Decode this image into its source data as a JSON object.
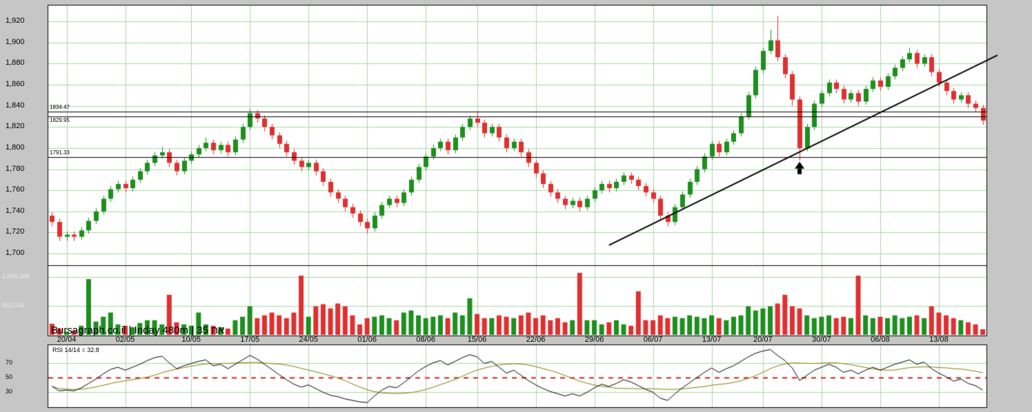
{
  "title": "Bursagraph.co.il | Inday 480m | 35 אח",
  "rsi_label": "RSI 14/14 = 32.8",
  "axes": {
    "price_ticks": [
      {
        "label": "1,920",
        "value": 1920
      },
      {
        "label": "1,900",
        "value": 1900
      },
      {
        "label": "1,880",
        "value": 1880
      },
      {
        "label": "1,860",
        "value": 1860
      },
      {
        "label": "1,840",
        "value": 1840
      },
      {
        "label": "1,820",
        "value": 1820
      },
      {
        "label": "1,800",
        "value": 1800
      },
      {
        "label": "1,780",
        "value": 1780
      },
      {
        "label": "1,760",
        "value": 1760
      },
      {
        "label": "1,740",
        "value": 1740
      },
      {
        "label": "1,720",
        "value": 1720
      },
      {
        "label": "1,700",
        "value": 1700
      }
    ],
    "volume_ticks": [
      {
        "label": "1,666,288",
        "value": 1666288
      },
      {
        "label": "833,144",
        "value": 833144
      }
    ],
    "rsi_ticks": [
      70,
      50,
      30
    ],
    "dates": [
      "20/04",
      "02/05",
      "10/05",
      "17/05",
      "24/05",
      "01/06",
      "08/06",
      "15/06",
      "22/06",
      "29/06",
      "06/07",
      "13/07",
      "20/07",
      "30/07",
      "06/08",
      "13/08"
    ]
  },
  "levels": [
    {
      "label": "1834.47",
      "value": 1834.47,
      "label_pos": "above"
    },
    {
      "label": "1829.95",
      "value": 1829.95,
      "label_pos": "below"
    },
    {
      "label": "1791.33",
      "value": 1791.33,
      "label_pos": "above"
    }
  ],
  "colors": {
    "background": "#c6c6c6",
    "plot_bg": "#ffffff",
    "grid": "#a6d7a6",
    "up": "#1d8f1d",
    "down": "#e03030",
    "rsi_line": "#000000",
    "rsi_ma": "#7f7f00",
    "level_line": "#000000",
    "trend_line": "#000000",
    "dashed_50": "#cc2222",
    "border": "#000000"
  },
  "chart_data": {
    "type": "candlestick",
    "title": "Bursagraph.co.il | Inday 480m | 35 אח",
    "panes": [
      "price",
      "volume",
      "rsi"
    ],
    "price_range": [
      1689,
      1935
    ],
    "volume_max": 1900000,
    "rsi_range": [
      0,
      100
    ],
    "x_labels": [
      "20/04",
      "02/05",
      "10/05",
      "17/05",
      "24/05",
      "01/06",
      "08/06",
      "15/06",
      "22/06",
      "29/06",
      "06/07",
      "13/07",
      "20/07",
      "30/07",
      "06/08",
      "13/08"
    ],
    "label_indices": [
      2,
      10,
      19,
      27,
      35,
      43,
      51,
      58,
      66,
      74,
      82,
      90,
      97,
      105,
      113,
      121
    ],
    "candles_ohlc": [
      [
        1736,
        1739,
        1726,
        1730
      ],
      [
        1730,
        1733,
        1712,
        1716
      ],
      [
        1716,
        1721,
        1712,
        1718
      ],
      [
        1718,
        1721,
        1712,
        1716
      ],
      [
        1716,
        1725,
        1713,
        1722
      ],
      [
        1722,
        1734,
        1719,
        1731
      ],
      [
        1731,
        1743,
        1728,
        1740
      ],
      [
        1740,
        1755,
        1737,
        1752
      ],
      [
        1752,
        1764,
        1749,
        1761
      ],
      [
        1761,
        1769,
        1758,
        1766
      ],
      [
        1766,
        1769,
        1758,
        1762
      ],
      [
        1762,
        1773,
        1759,
        1770
      ],
      [
        1770,
        1781,
        1767,
        1778
      ],
      [
        1778,
        1789,
        1775,
        1786
      ],
      [
        1786,
        1796,
        1783,
        1793
      ],
      [
        1793,
        1801,
        1790,
        1796
      ],
      [
        1796,
        1799,
        1782,
        1786
      ],
      [
        1786,
        1789,
        1774,
        1778
      ],
      [
        1778,
        1791,
        1775,
        1788
      ],
      [
        1788,
        1797,
        1785,
        1794
      ],
      [
        1794,
        1803,
        1791,
        1800
      ],
      [
        1800,
        1810,
        1797,
        1805
      ],
      [
        1805,
        1808,
        1794,
        1798
      ],
      [
        1798,
        1806,
        1795,
        1803
      ],
      [
        1803,
        1806,
        1792,
        1796
      ],
      [
        1796,
        1811,
        1793,
        1808
      ],
      [
        1808,
        1823,
        1805,
        1820
      ],
      [
        1820,
        1837,
        1817,
        1833
      ],
      [
        1833,
        1836,
        1824,
        1828
      ],
      [
        1828,
        1831,
        1816,
        1820
      ],
      [
        1820,
        1823,
        1808,
        1812
      ],
      [
        1812,
        1815,
        1800,
        1804
      ],
      [
        1804,
        1807,
        1792,
        1796
      ],
      [
        1796,
        1799,
        1784,
        1788
      ],
      [
        1788,
        1791,
        1778,
        1782
      ],
      [
        1782,
        1789,
        1779,
        1786
      ],
      [
        1786,
        1789,
        1774,
        1778
      ],
      [
        1778,
        1781,
        1764,
        1768
      ],
      [
        1768,
        1771,
        1754,
        1758
      ],
      [
        1758,
        1761,
        1748,
        1752
      ],
      [
        1752,
        1755,
        1740,
        1744
      ],
      [
        1744,
        1747,
        1734,
        1738
      ],
      [
        1738,
        1741,
        1726,
        1730
      ],
      [
        1730,
        1733,
        1719,
        1724
      ],
      [
        1724,
        1739,
        1721,
        1736
      ],
      [
        1736,
        1749,
        1733,
        1746
      ],
      [
        1746,
        1755,
        1743,
        1752
      ],
      [
        1752,
        1755,
        1744,
        1748
      ],
      [
        1748,
        1761,
        1745,
        1758
      ],
      [
        1758,
        1773,
        1755,
        1770
      ],
      [
        1770,
        1785,
        1767,
        1782
      ],
      [
        1782,
        1795,
        1779,
        1792
      ],
      [
        1792,
        1803,
        1789,
        1800
      ],
      [
        1800,
        1809,
        1797,
        1806
      ],
      [
        1806,
        1809,
        1794,
        1798
      ],
      [
        1798,
        1813,
        1795,
        1810
      ],
      [
        1810,
        1823,
        1807,
        1820
      ],
      [
        1820,
        1831,
        1817,
        1828
      ],
      [
        1828,
        1835,
        1820,
        1824
      ],
      [
        1824,
        1827,
        1810,
        1814
      ],
      [
        1814,
        1823,
        1811,
        1820
      ],
      [
        1820,
        1823,
        1806,
        1810
      ],
      [
        1810,
        1813,
        1796,
        1800
      ],
      [
        1800,
        1809,
        1797,
        1806
      ],
      [
        1806,
        1809,
        1792,
        1796
      ],
      [
        1796,
        1799,
        1782,
        1786
      ],
      [
        1786,
        1789,
        1772,
        1776
      ],
      [
        1776,
        1779,
        1762,
        1766
      ],
      [
        1766,
        1769,
        1754,
        1758
      ],
      [
        1758,
        1761,
        1748,
        1752
      ],
      [
        1752,
        1755,
        1742,
        1746
      ],
      [
        1746,
        1753,
        1743,
        1750
      ],
      [
        1750,
        1753,
        1740,
        1744
      ],
      [
        1744,
        1755,
        1741,
        1752
      ],
      [
        1752,
        1763,
        1749,
        1760
      ],
      [
        1760,
        1769,
        1757,
        1766
      ],
      [
        1766,
        1769,
        1758,
        1762
      ],
      [
        1762,
        1771,
        1759,
        1768
      ],
      [
        1768,
        1777,
        1765,
        1774
      ],
      [
        1774,
        1777,
        1766,
        1770
      ],
      [
        1770,
        1773,
        1760,
        1764
      ],
      [
        1764,
        1767,
        1754,
        1758
      ],
      [
        1758,
        1761,
        1748,
        1752
      ],
      [
        1752,
        1755,
        1732,
        1736
      ],
      [
        1736,
        1739,
        1726,
        1730
      ],
      [
        1730,
        1747,
        1727,
        1744
      ],
      [
        1744,
        1759,
        1741,
        1756
      ],
      [
        1756,
        1771,
        1753,
        1768
      ],
      [
        1768,
        1783,
        1765,
        1780
      ],
      [
        1780,
        1795,
        1777,
        1792
      ],
      [
        1792,
        1807,
        1789,
        1804
      ],
      [
        1804,
        1807,
        1792,
        1796
      ],
      [
        1796,
        1809,
        1793,
        1806
      ],
      [
        1806,
        1817,
        1803,
        1814
      ],
      [
        1814,
        1833,
        1811,
        1830
      ],
      [
        1830,
        1853,
        1827,
        1850
      ],
      [
        1850,
        1877,
        1847,
        1874
      ],
      [
        1874,
        1895,
        1871,
        1892
      ],
      [
        1892,
        1912,
        1889,
        1902
      ],
      [
        1902,
        1925,
        1882,
        1886
      ],
      [
        1886,
        1889,
        1866,
        1870
      ],
      [
        1870,
        1873,
        1840,
        1846
      ],
      [
        1846,
        1849,
        1788,
        1800
      ],
      [
        1800,
        1823,
        1797,
        1820
      ],
      [
        1820,
        1845,
        1817,
        1842
      ],
      [
        1842,
        1855,
        1839,
        1852
      ],
      [
        1852,
        1865,
        1849,
        1862
      ],
      [
        1862,
        1865,
        1852,
        1856
      ],
      [
        1856,
        1859,
        1842,
        1846
      ],
      [
        1846,
        1855,
        1843,
        1852
      ],
      [
        1852,
        1855,
        1840,
        1844
      ],
      [
        1844,
        1859,
        1841,
        1856
      ],
      [
        1856,
        1867,
        1853,
        1864
      ],
      [
        1864,
        1867,
        1854,
        1858
      ],
      [
        1858,
        1871,
        1855,
        1868
      ],
      [
        1868,
        1879,
        1865,
        1876
      ],
      [
        1876,
        1887,
        1873,
        1884
      ],
      [
        1884,
        1895,
        1881,
        1890
      ],
      [
        1890,
        1893,
        1876,
        1880
      ],
      [
        1880,
        1889,
        1877,
        1886
      ],
      [
        1886,
        1889,
        1868,
        1872
      ],
      [
        1872,
        1875,
        1858,
        1862
      ],
      [
        1862,
        1865,
        1850,
        1854
      ],
      [
        1854,
        1857,
        1842,
        1846
      ],
      [
        1846,
        1853,
        1843,
        1850
      ],
      [
        1850,
        1853,
        1838,
        1842
      ],
      [
        1842,
        1845,
        1834,
        1838
      ],
      [
        1838,
        1841,
        1822,
        1826
      ]
    ],
    "volume": [
      320000,
      180000,
      90000,
      120000,
      260000,
      1600000,
      380000,
      520000,
      640000,
      300000,
      260000,
      220000,
      340000,
      420000,
      420000,
      300000,
      1150000,
      360000,
      300000,
      260000,
      640000,
      300000,
      260000,
      220000,
      180000,
      420000,
      520000,
      820000,
      480000,
      560000,
      640000,
      560000,
      480000,
      640000,
      1700000,
      520000,
      820000,
      880000,
      760000,
      900000,
      820000,
      560000,
      300000,
      480000,
      520000,
      560000,
      480000,
      420000,
      640000,
      700000,
      560000,
      480000,
      520000,
      560000,
      480000,
      640000,
      560000,
      1050000,
      600000,
      480000,
      480000,
      560000,
      520000,
      480000,
      560000,
      640000,
      480000,
      560000,
      420000,
      480000,
      360000,
      420000,
      1780000,
      420000,
      420000,
      300000,
      360000,
      420000,
      300000,
      260000,
      1250000,
      420000,
      420000,
      560000,
      480000,
      520000,
      480000,
      560000,
      520000,
      480000,
      560000,
      480000,
      420000,
      520000,
      560000,
      820000,
      700000,
      760000,
      820000,
      900000,
      1150000,
      820000,
      760000,
      560000,
      480000,
      520000,
      560000,
      480000,
      520000,
      480000,
      1700000,
      560000,
      480000,
      520000,
      480000,
      560000,
      480000,
      520000,
      560000,
      480000,
      820000,
      640000,
      560000,
      480000,
      420000,
      360000,
      300000,
      160000
    ],
    "rsi": [
      38,
      32,
      33,
      32,
      36,
      42,
      48,
      55,
      61,
      64,
      60,
      64,
      68,
      73,
      77,
      79,
      70,
      62,
      66,
      69,
      72,
      74,
      66,
      68,
      62,
      68,
      74,
      80,
      75,
      68,
      61,
      54,
      47,
      41,
      37,
      40,
      35,
      30,
      26,
      24,
      21,
      19,
      17,
      16,
      25,
      33,
      38,
      36,
      43,
      51,
      59,
      65,
      70,
      73,
      67,
      72,
      77,
      81,
      78,
      69,
      72,
      64,
      56,
      60,
      53,
      46,
      40,
      35,
      31,
      28,
      25,
      28,
      25,
      30,
      36,
      41,
      38,
      42,
      47,
      44,
      39,
      34,
      30,
      22,
      19,
      28,
      36,
      43,
      50,
      57,
      63,
      57,
      62,
      66,
      72,
      78,
      83,
      86,
      88,
      80,
      73,
      63,
      46,
      53,
      60,
      64,
      68,
      64,
      57,
      60,
      55,
      60,
      64,
      60,
      64,
      68,
      71,
      74,
      68,
      71,
      62,
      56,
      51,
      45,
      48,
      42,
      39,
      33
    ],
    "rsi_ma_window": 14,
    "rsi_current": 32.8,
    "trendline": {
      "from": {
        "index": 76,
        "price": 1708
      },
      "to": {
        "index": 129,
        "price": 1888
      }
    },
    "arrow": {
      "index": 102,
      "price": 1787
    }
  }
}
